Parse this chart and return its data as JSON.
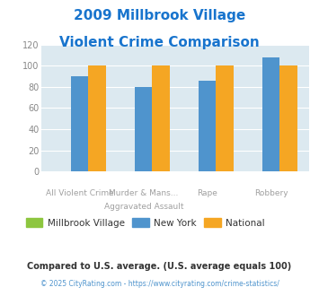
{
  "title_line1": "2009 Millbrook Village",
  "title_line2": "Violent Crime Comparison",
  "title_color": "#1874cd",
  "cat_labels_row1": [
    "",
    "Murder & Mans...",
    "",
    ""
  ],
  "cat_labels_row2": [
    "All Violent Crime",
    "Aggravated Assault",
    "Rape",
    "Robbery"
  ],
  "millbrook_values": [
    0,
    0,
    0,
    0
  ],
  "newyork_values": [
    90,
    80,
    86,
    108
  ],
  "national_values": [
    100,
    100,
    100,
    100
  ],
  "millbrook_color": "#8dc63f",
  "newyork_color": "#4f94cd",
  "national_color": "#f5a623",
  "ylim": [
    0,
    120
  ],
  "yticks": [
    0,
    20,
    40,
    60,
    80,
    100,
    120
  ],
  "bg_color": "#dce9f0",
  "legend_labels": [
    "Millbrook Village",
    "New York",
    "National"
  ],
  "footnote1": "Compared to U.S. average. (U.S. average equals 100)",
  "footnote2": "© 2025 CityRating.com - https://www.cityrating.com/crime-statistics/",
  "footnote1_color": "#333333",
  "footnote2_color": "#4f94cd"
}
